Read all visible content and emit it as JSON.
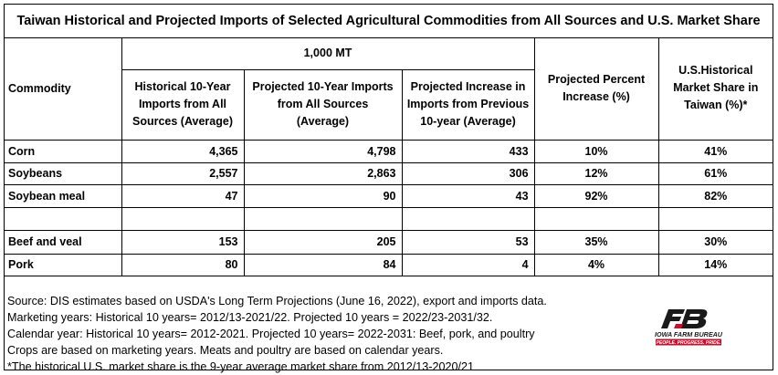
{
  "title": "Taiwan Historical and Projected Imports of Selected Agricultural Commodities from All Sources and U.S. Market Share",
  "unit_header": "1,000 MT",
  "columns": {
    "commodity": "Commodity",
    "historical": [
      "Historical 10-Year",
      "Imports  from All",
      "Sources (Average)"
    ],
    "projected": [
      "Projected 10-Year Imports",
      "from All Sources",
      "(Average)"
    ],
    "increase": [
      "Projected Increase in",
      "Imports  from Previous",
      "10-year (Average)"
    ],
    "percent": [
      "Projected Percent",
      "Increase (%)"
    ],
    "share": [
      "U.S.Historical",
      "Market Share in",
      "Taiwan (%)*"
    ]
  },
  "rows": [
    {
      "commodity": "Corn",
      "historical": "4,365",
      "projected": "4,798",
      "increase": "433",
      "percent": "10%",
      "share": "41%"
    },
    {
      "commodity": "Soybeans",
      "historical": "2,557",
      "projected": "2,863",
      "increase": "306",
      "percent": "12%",
      "share": "61%"
    },
    {
      "commodity": "Soybean meal",
      "historical": "47",
      "projected": "90",
      "increase": "43",
      "percent": "92%",
      "share": "82%"
    },
    {
      "commodity": "",
      "historical": "",
      "projected": "",
      "increase": "",
      "percent": "",
      "share": ""
    },
    {
      "commodity": "Beef and veal",
      "historical": "153",
      "projected": "205",
      "increase": "53",
      "percent": "35%",
      "share": "30%"
    },
    {
      "commodity": "Pork",
      "historical": "80",
      "projected": "84",
      "increase": "4",
      "percent": "4%",
      "share": "14%"
    }
  ],
  "notes": [
    "Source: DIS estimates based on USDA's Long Term Projections (June 16, 2022), export and imports data.",
    "Marketing years: Historical 10 years= 2012/13-2021/22. Projected 10 years = 2022/23-2031/32.",
    "Calendar year: Historical 10 years=  2012-2021. Projected 10 years= 2022-2031: Beef, pork, and poultry",
    "Crops are based on marketing years. Meats and poultry are based on calendar years.",
    "*The historical  U.S. market share is the 9-year average market share from 2012/13-2020/21"
  ],
  "logo": {
    "name": "IOWA FARM BUREAU",
    "tagline": "PEOPLE. PROGRESS. PRIDE.",
    "icon": "iowa-farm-bureau-logo-icon",
    "color_dark": "#1a1a1a",
    "color_red": "#c8102e"
  },
  "chart_data": {
    "type": "table",
    "title": "Taiwan Historical and Projected Imports of Selected Agricultural Commodities from All Sources and U.S. Market Share",
    "unit": "1,000 MT",
    "columns": [
      "Commodity",
      "Historical 10-Year Imports from All Sources (Average)",
      "Projected 10-Year Imports from All Sources (Average)",
      "Projected Increase in Imports from Previous 10-year (Average)",
      "Projected Percent Increase (%)",
      "U.S.Historical Market Share in Taiwan (%)*"
    ],
    "rows": [
      [
        "Corn",
        4365,
        4798,
        433,
        10,
        41
      ],
      [
        "Soybeans",
        2557,
        2863,
        306,
        12,
        61
      ],
      [
        "Soybean meal",
        47,
        90,
        43,
        92,
        82
      ],
      [
        "Beef and veal",
        153,
        205,
        53,
        35,
        30
      ],
      [
        "Pork",
        80,
        84,
        4,
        4,
        14
      ]
    ]
  }
}
